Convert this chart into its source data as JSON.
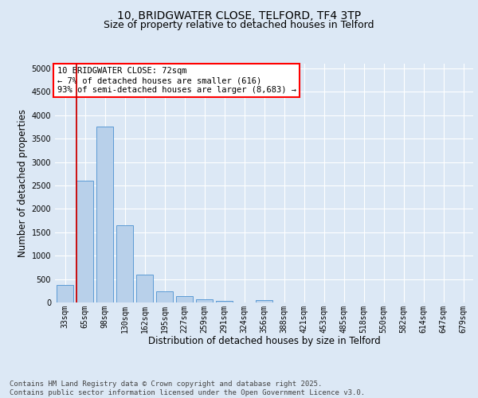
{
  "title_line1": "10, BRIDGWATER CLOSE, TELFORD, TF4 3TP",
  "title_line2": "Size of property relative to detached houses in Telford",
  "xlabel": "Distribution of detached houses by size in Telford",
  "ylabel": "Number of detached properties",
  "categories": [
    "33sqm",
    "65sqm",
    "98sqm",
    "130sqm",
    "162sqm",
    "195sqm",
    "227sqm",
    "259sqm",
    "291sqm",
    "324sqm",
    "356sqm",
    "388sqm",
    "421sqm",
    "453sqm",
    "485sqm",
    "518sqm",
    "550sqm",
    "582sqm",
    "614sqm",
    "647sqm",
    "679sqm"
  ],
  "values": [
    380,
    2600,
    3750,
    1650,
    600,
    230,
    130,
    65,
    35,
    0,
    50,
    0,
    0,
    0,
    0,
    0,
    0,
    0,
    0,
    0,
    0
  ],
  "bar_color": "#b8d0ea",
  "bar_edge_color": "#5b9bd5",
  "vline_color": "#cc0000",
  "vline_index": 1,
  "annotation_line1": "10 BRIDGWATER CLOSE: 72sqm",
  "annotation_line2": "← 7% of detached houses are smaller (616)",
  "annotation_line3": "93% of semi-detached houses are larger (8,683) →",
  "ylim_max": 5100,
  "yticks": [
    0,
    500,
    1000,
    1500,
    2000,
    2500,
    3000,
    3500,
    4000,
    4500,
    5000
  ],
  "fig_bg_color": "#dce8f5",
  "plot_bg_color": "#dce8f5",
  "grid_color": "#ffffff",
  "footer_text": "Contains HM Land Registry data © Crown copyright and database right 2025.\nContains public sector information licensed under the Open Government Licence v3.0.",
  "title_fontsize": 10,
  "subtitle_fontsize": 9,
  "axis_label_fontsize": 8.5,
  "tick_fontsize": 7,
  "annot_fontsize": 7.5,
  "footer_fontsize": 6.5
}
